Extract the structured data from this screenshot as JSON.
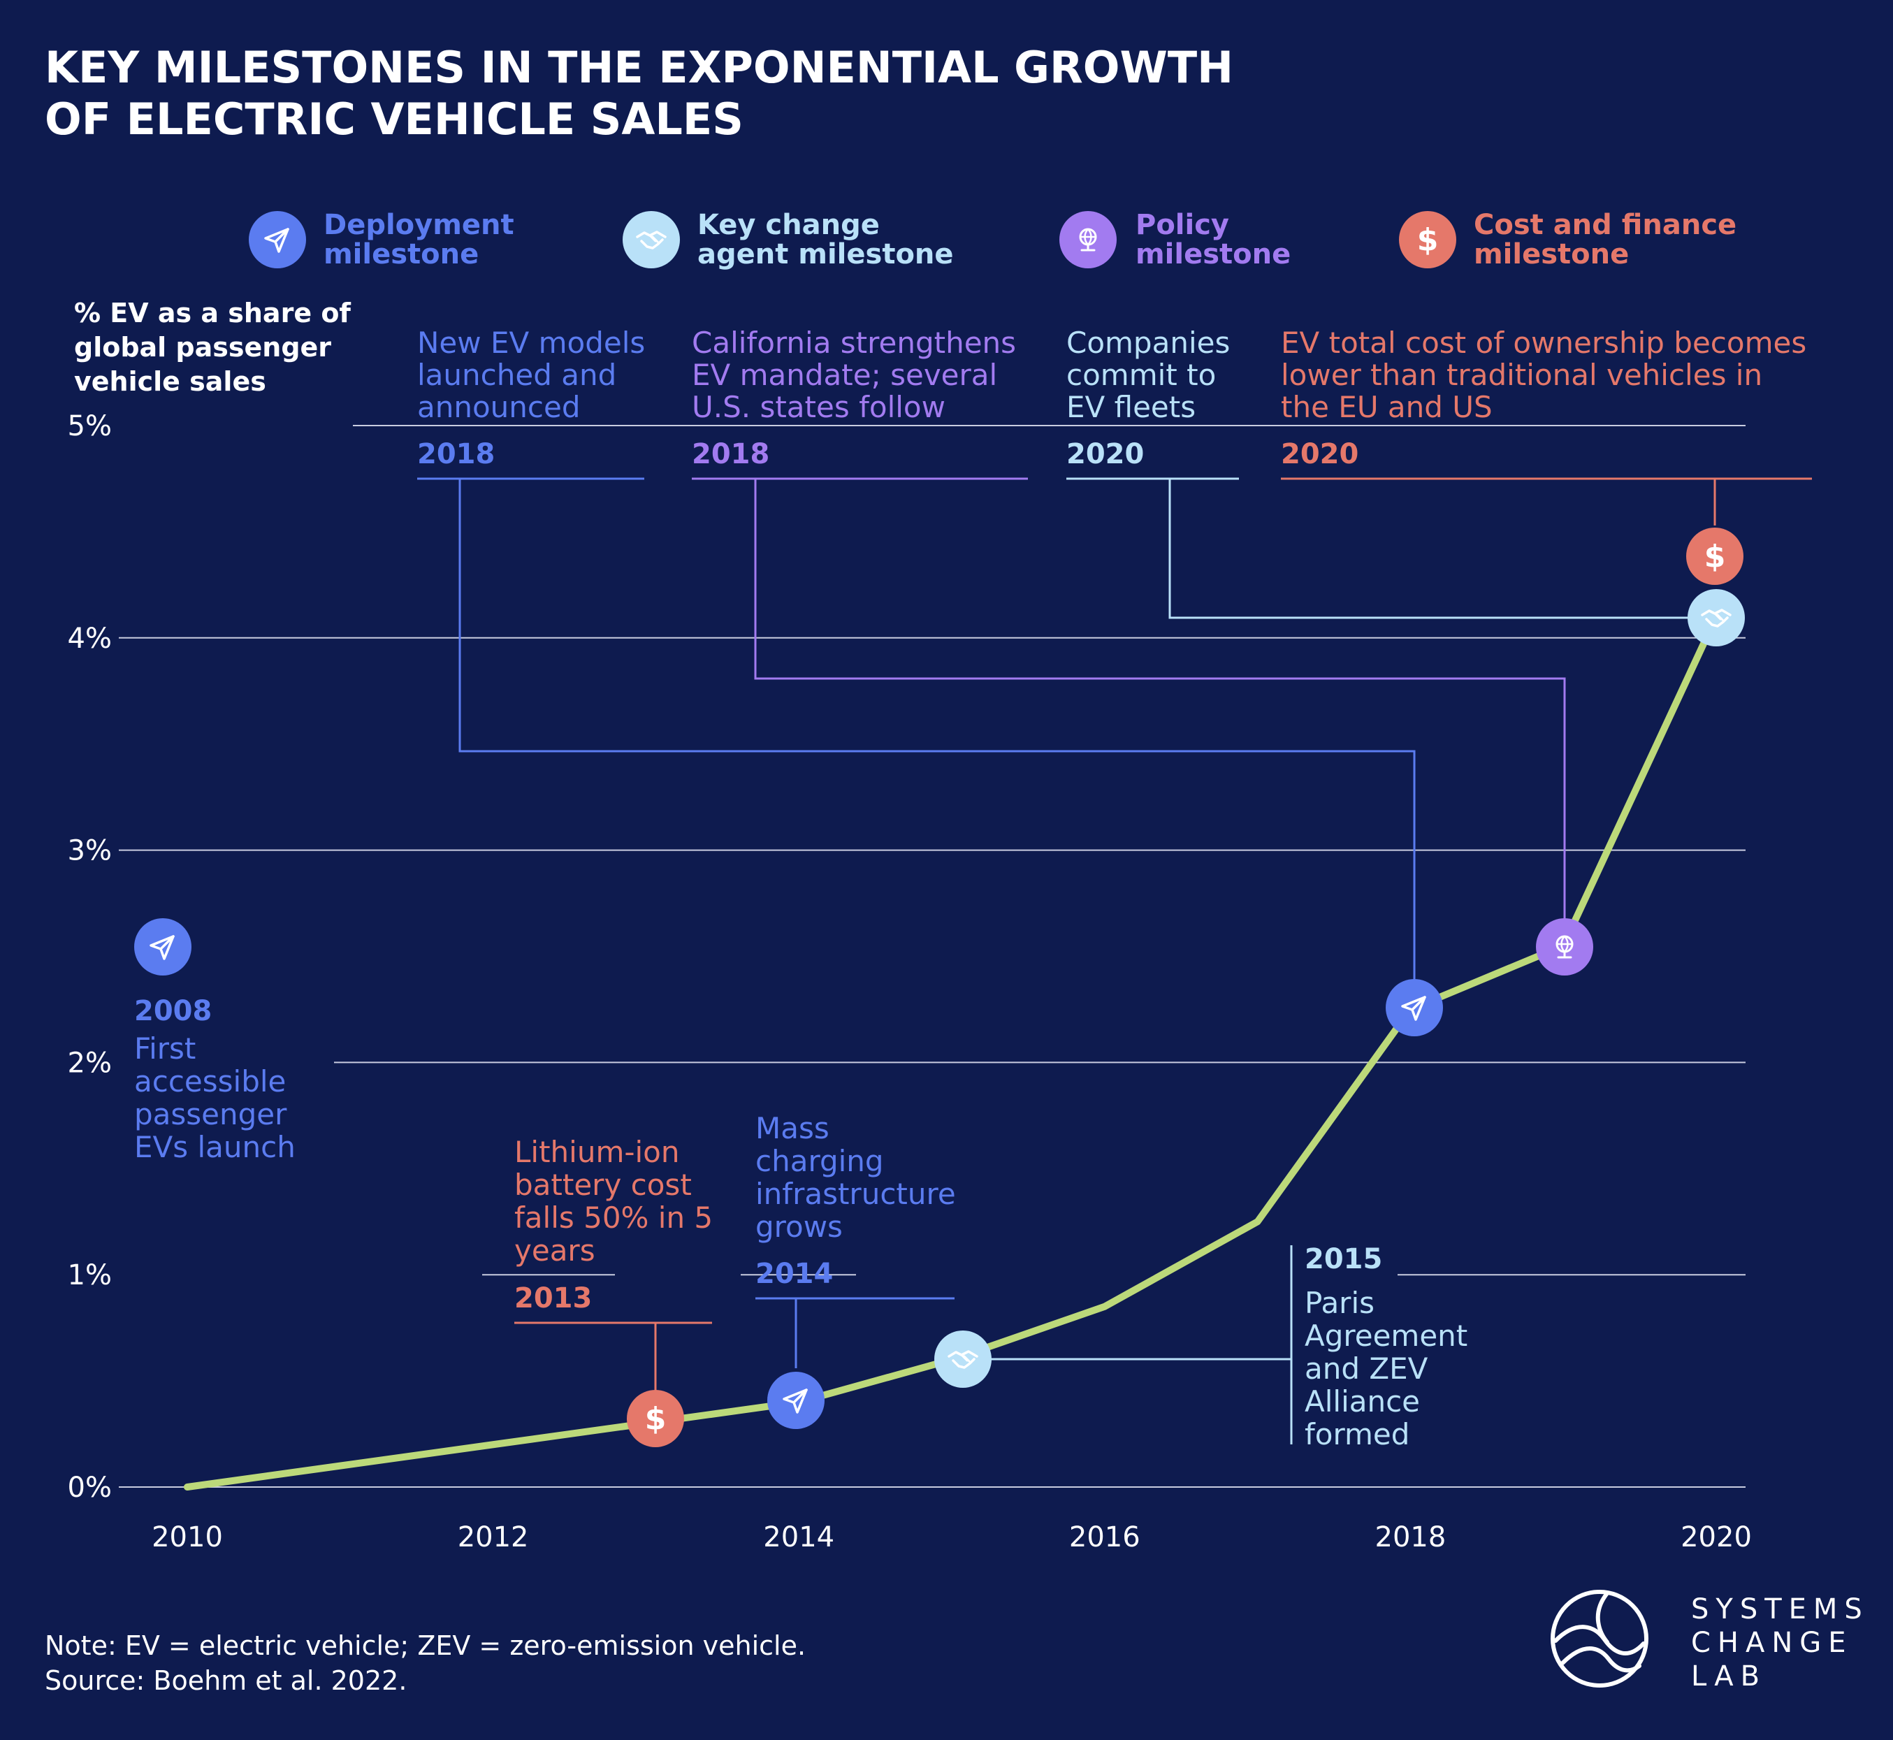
{
  "title_line1": "KEY MILESTONES IN THE EXPONENTIAL GROWTH",
  "title_line2": "OF ELECTRIC VEHICLE SALES",
  "colors": {
    "background": "#0e1b4f",
    "line": "#bcd97a",
    "deployment": "#5b7cf0",
    "key_change": "#b9e1f8",
    "policy": "#a27bf0",
    "cost": "#e5786a",
    "grid": "#c9cde0"
  },
  "legend": [
    {
      "key": "deployment",
      "line1": "Deployment",
      "line2": "milestone",
      "icon": "paper-plane-icon"
    },
    {
      "key": "key_change",
      "line1": "Key change",
      "line2": "agent milestone",
      "icon": "handshake-icon"
    },
    {
      "key": "policy",
      "line1": "Policy",
      "line2": "milestone",
      "icon": "globe-icon"
    },
    {
      "key": "cost",
      "line1": "Cost and finance",
      "line2": "milestone",
      "icon": "dollar-icon"
    }
  ],
  "chart_data": {
    "type": "line",
    "title": "Key milestones in the exponential growth of electric vehicle sales",
    "ylabel_lines": [
      "% EV as a share of",
      "global passenger",
      "vehicle sales"
    ],
    "xlabel": "",
    "xlim": [
      2010,
      2020
    ],
    "ylim": [
      0,
      5
    ],
    "x_ticks": [
      "2010",
      "2012",
      "2014",
      "2016",
      "2018",
      "2020"
    ],
    "y_ticks": [
      "0%",
      "1%",
      "2%",
      "3%",
      "4%",
      "5%"
    ],
    "series": [
      {
        "name": "EV share of global passenger vehicle sales (%)",
        "x": [
          2010,
          2011,
          2012,
          2013,
          2014,
          2015,
          2016,
          2017,
          2018,
          2019,
          2020
        ],
        "values": [
          0.0,
          0.1,
          0.2,
          0.3,
          0.4,
          0.6,
          0.85,
          1.25,
          2.25,
          2.55,
          4.1
        ]
      }
    ],
    "milestones": [
      {
        "id": "2008",
        "category": "deployment",
        "year": "2008",
        "lines": [
          "First",
          "accessible",
          "passenger",
          "EVs launch"
        ],
        "x": null,
        "y": null
      },
      {
        "id": "2013",
        "category": "cost",
        "year": "2013",
        "lines": [
          "Lithium-ion",
          "battery cost",
          "falls 50% in 5",
          "years"
        ],
        "x": 2013,
        "y": 0.3
      },
      {
        "id": "2014",
        "category": "deployment",
        "year": "2014",
        "lines": [
          "Mass",
          "charging",
          "infrastructure",
          "grows"
        ],
        "x": 2014,
        "y": 0.4
      },
      {
        "id": "2015",
        "category": "key_change",
        "year": "2015",
        "lines": [
          "Paris",
          "Agreement",
          "and ZEV",
          "Alliance",
          "formed"
        ],
        "x": 2015,
        "y": 0.6
      },
      {
        "id": "2018a",
        "category": "deployment",
        "year": "2018",
        "lines": [
          "New EV models",
          "launched and",
          "announced"
        ],
        "x": 2018,
        "y": 2.25
      },
      {
        "id": "2018b",
        "category": "policy",
        "year": "2018",
        "lines": [
          "California strengthens",
          "EV mandate; several",
          "U.S. states follow"
        ],
        "x": 2019,
        "y": 2.55
      },
      {
        "id": "2020a",
        "category": "key_change",
        "year": "2020",
        "lines": [
          "Companies",
          "commit to",
          "EV fleets"
        ],
        "x": 2020,
        "y": 4.1
      },
      {
        "id": "2020b",
        "category": "cost",
        "year": "2020",
        "lines": [
          "EV total cost of ownership becomes",
          "lower than traditional vehicles in",
          "the EU and US"
        ],
        "x": 2020,
        "y": 4.4
      }
    ]
  },
  "note_line1": "Note: EV = electric vehicle; ZEV = zero-emission vehicle.",
  "note_line2": "Source: Boehm et al. 2022.",
  "logo": {
    "line1": "SYSTEMS",
    "line2": "CHANGE",
    "line3": "LAB"
  }
}
